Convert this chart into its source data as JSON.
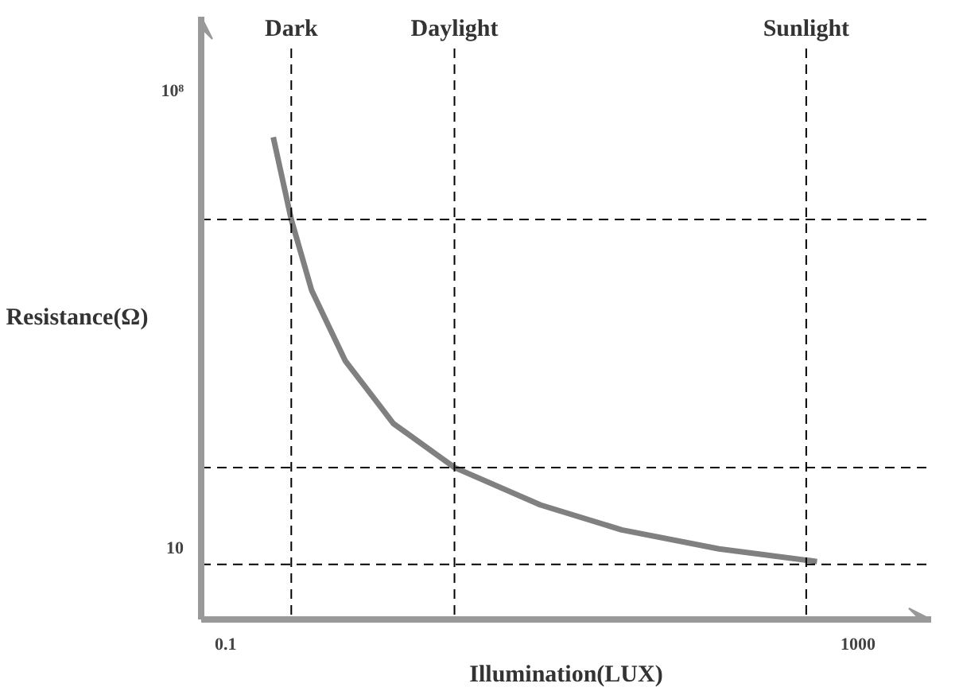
{
  "chart_data": {
    "type": "line",
    "xlabel": "Illumination(LUX)",
    "ylabel": "Resistance(Ω)",
    "log": "xy",
    "x": [
      0.2,
      0.26,
      0.35,
      0.57,
      1.15,
      2.8,
      9.8,
      32,
      132,
      550
    ],
    "series": [
      {
        "color": "#808080",
        "values": [
          20000000,
          1100000,
          90000,
          7600,
          830,
          176,
          47,
          19.5,
          10,
          6.4
        ]
      }
    ],
    "xlim": [
      0.07,
      2900
    ],
    "ylim": [
      0.83,
      1400000000
    ],
    "xticks": [
      0.1,
      1000
    ],
    "yticks": [
      {
        "value": 100000000,
        "label": "10⁸"
      },
      10
    ],
    "ref_lines": [
      {
        "axis": "x",
        "value": 0.26,
        "label": "Dark",
        "line_style": "dashed",
        "color": "#000000"
      },
      {
        "axis": "x",
        "value": 2.8,
        "label": "Daylight",
        "line_style": "dashed",
        "color": "#000000"
      },
      {
        "axis": "x",
        "value": 470,
        "label": "Sunlight",
        "line_style": "dashed",
        "color": "#000000"
      },
      {
        "axis": "y",
        "value": 1100000,
        "line_style": "dashed",
        "color": "#000000"
      },
      {
        "axis": "y",
        "value": 176,
        "line_style": "dashed",
        "color": "#000000"
      },
      {
        "axis": "y",
        "value": 5.8,
        "line_style": "dashed",
        "color": "#000000"
      }
    ],
    "grid": false,
    "marker": "none",
    "line_style": "solid"
  }
}
